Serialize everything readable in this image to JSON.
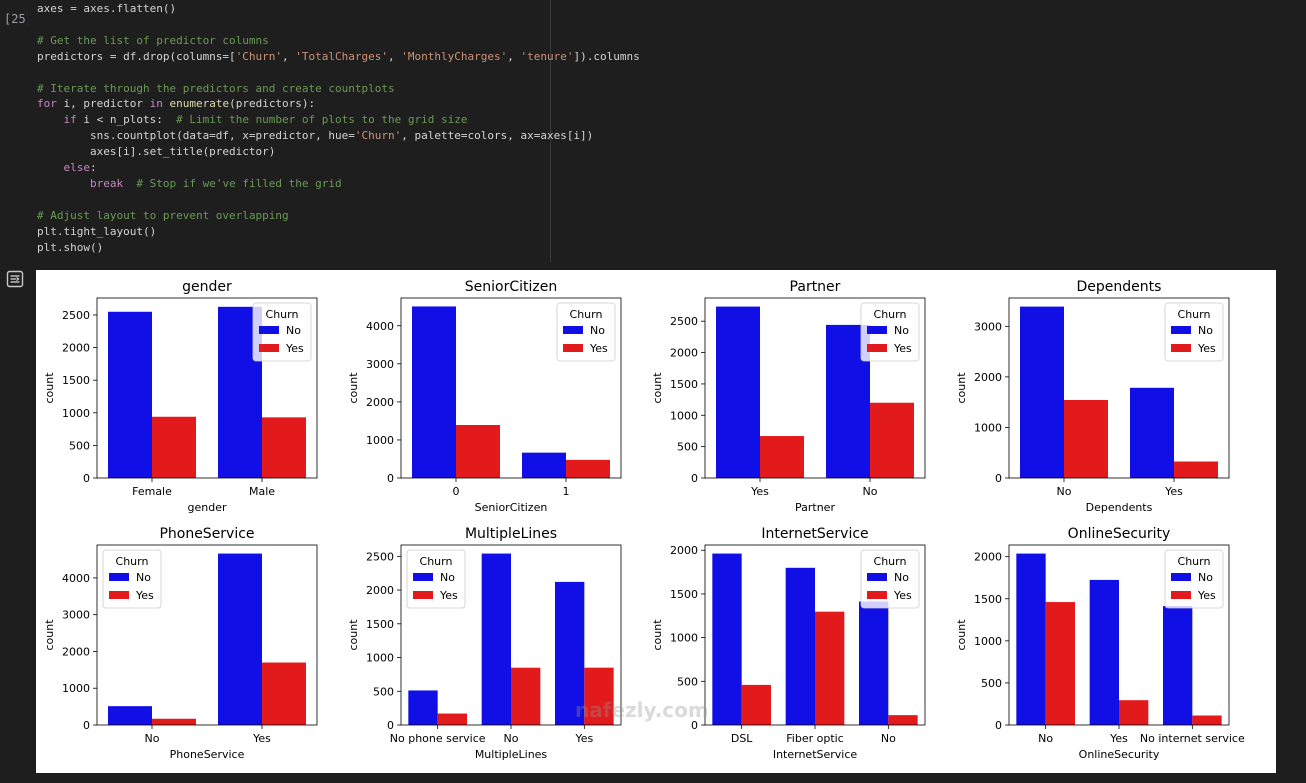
{
  "cell": {
    "exec_count": "[25]",
    "lines": [
      [
        {
          "t": "axes = axes.flatten()",
          "c": ""
        }
      ],
      [],
      [
        {
          "t": "# Get the list of predictor columns",
          "c": "cmt"
        }
      ],
      [
        {
          "t": "predictors = df.drop(columns=[",
          "c": ""
        },
        {
          "t": "'Churn'",
          "c": "str"
        },
        {
          "t": ", ",
          "c": ""
        },
        {
          "t": "'TotalCharges'",
          "c": "str"
        },
        {
          "t": ", ",
          "c": ""
        },
        {
          "t": "'MonthlyCharges'",
          "c": "str"
        },
        {
          "t": ", ",
          "c": ""
        },
        {
          "t": "'tenure'",
          "c": "str"
        },
        {
          "t": "]).columns",
          "c": ""
        }
      ],
      [],
      [
        {
          "t": "# Iterate through the predictors and create countplots",
          "c": "cmt"
        }
      ],
      [
        {
          "t": "for",
          "c": "kw"
        },
        {
          "t": " i, predictor ",
          "c": ""
        },
        {
          "t": "in",
          "c": "kw"
        },
        {
          "t": " ",
          "c": ""
        },
        {
          "t": "enumerate",
          "c": "fn"
        },
        {
          "t": "(predictors):",
          "c": ""
        }
      ],
      [
        {
          "t": "    ",
          "c": ""
        },
        {
          "t": "if",
          "c": "kw"
        },
        {
          "t": " i < n_plots:  ",
          "c": ""
        },
        {
          "t": "# Limit the number of plots to the grid size",
          "c": "cmt"
        }
      ],
      [
        {
          "t": "        sns.countplot(data=df, x=predictor, hue=",
          "c": ""
        },
        {
          "t": "'Churn'",
          "c": "str"
        },
        {
          "t": ", palette=colors, ax=axes[i])",
          "c": ""
        }
      ],
      [
        {
          "t": "        axes[i].set_title(predictor)",
          "c": ""
        }
      ],
      [
        {
          "t": "    ",
          "c": ""
        },
        {
          "t": "else",
          "c": "kw"
        },
        {
          "t": ":",
          "c": ""
        }
      ],
      [
        {
          "t": "        ",
          "c": ""
        },
        {
          "t": "break",
          "c": "kw"
        },
        {
          "t": "  ",
          "c": ""
        },
        {
          "t": "# Stop if we've filled the grid",
          "c": "cmt"
        }
      ],
      [],
      [
        {
          "t": "# Adjust layout to prevent overlapping",
          "c": "cmt"
        }
      ],
      [
        {
          "t": "plt.tight_layout()",
          "c": ""
        }
      ],
      [
        {
          "t": "plt.show()",
          "c": ""
        }
      ]
    ]
  },
  "output_icon": "output-toggle-icon",
  "watermark": "nafezly.com",
  "colors": {
    "no": "#0f0fe6",
    "yes": "#e31a1c"
  },
  "chart_data": [
    {
      "type": "bar",
      "title": "gender",
      "xlabel": "gender",
      "ylabel": "count",
      "categories": [
        "Female",
        "Male"
      ],
      "series": [
        {
          "name": "No",
          "values": [
            2549,
            2625
          ]
        },
        {
          "name": "Yes",
          "values": [
            939,
            930
          ]
        }
      ],
      "yticks": [
        0,
        500,
        1000,
        1500,
        2000,
        2500
      ],
      "ylim": [
        0,
        2760
      ],
      "legend": {
        "title": "Churn",
        "position": "upper right"
      }
    },
    {
      "type": "bar",
      "title": "SeniorCitizen",
      "xlabel": "SeniorCitizen",
      "ylabel": "count",
      "categories": [
        "0",
        "1"
      ],
      "series": [
        {
          "name": "No",
          "values": [
            4508,
            666
          ]
        },
        {
          "name": "Yes",
          "values": [
            1393,
            476
          ]
        }
      ],
      "yticks": [
        0,
        1000,
        2000,
        3000,
        4000
      ],
      "ylim": [
        0,
        4730
      ],
      "legend": {
        "title": "Churn",
        "position": "upper right"
      }
    },
    {
      "type": "bar",
      "title": "Partner",
      "xlabel": "Partner",
      "ylabel": "count",
      "categories": [
        "Yes",
        "No"
      ],
      "series": [
        {
          "name": "No",
          "values": [
            2733,
            2441
          ]
        },
        {
          "name": "Yes",
          "values": [
            669,
            1200
          ]
        }
      ],
      "yticks": [
        0,
        500,
        1000,
        1500,
        2000,
        2500
      ],
      "ylim": [
        0,
        2870
      ],
      "legend": {
        "title": "Churn",
        "position": "upper right"
      }
    },
    {
      "type": "bar",
      "title": "Dependents",
      "xlabel": "Dependents",
      "ylabel": "count",
      "categories": [
        "No",
        "Yes"
      ],
      "series": [
        {
          "name": "No",
          "values": [
            3390,
            1784
          ]
        },
        {
          "name": "Yes",
          "values": [
            1543,
            326
          ]
        }
      ],
      "yticks": [
        0,
        1000,
        2000,
        3000
      ],
      "ylim": [
        0,
        3560
      ],
      "legend": {
        "title": "Churn",
        "position": "upper right"
      }
    },
    {
      "type": "bar",
      "title": "PhoneService",
      "xlabel": "PhoneService",
      "ylabel": "count",
      "categories": [
        "No",
        "Yes"
      ],
      "series": [
        {
          "name": "No",
          "values": [
            512,
            4662
          ]
        },
        {
          "name": "Yes",
          "values": [
            170,
            1699
          ]
        }
      ],
      "yticks": [
        0,
        1000,
        2000,
        3000,
        4000
      ],
      "ylim": [
        0,
        4895
      ],
      "legend": {
        "title": "Churn",
        "position": "upper left"
      }
    },
    {
      "type": "bar",
      "title": "MultipleLines",
      "xlabel": "MultipleLines",
      "ylabel": "count",
      "categories": [
        "No phone service",
        "No",
        "Yes"
      ],
      "series": [
        {
          "name": "No",
          "values": [
            512,
            2541,
            2121
          ]
        },
        {
          "name": "Yes",
          "values": [
            170,
            849,
            850
          ]
        }
      ],
      "yticks": [
        0,
        500,
        1000,
        1500,
        2000,
        2500
      ],
      "ylim": [
        0,
        2668
      ],
      "legend": {
        "title": "Churn",
        "position": "upper left"
      }
    },
    {
      "type": "bar",
      "title": "InternetService",
      "xlabel": "InternetService",
      "ylabel": "count",
      "categories": [
        "DSL",
        "Fiber optic",
        "No"
      ],
      "series": [
        {
          "name": "No",
          "values": [
            1962,
            1799,
            1413
          ]
        },
        {
          "name": "Yes",
          "values": [
            459,
            1297,
            113
          ]
        }
      ],
      "yticks": [
        0,
        500,
        1000,
        1500,
        2000
      ],
      "ylim": [
        0,
        2060
      ],
      "legend": {
        "title": "Churn",
        "position": "upper right"
      }
    },
    {
      "type": "bar",
      "title": "OnlineSecurity",
      "xlabel": "OnlineSecurity",
      "ylabel": "count",
      "categories": [
        "No",
        "Yes",
        "No internet service"
      ],
      "series": [
        {
          "name": "No",
          "values": [
            2037,
            1724,
            1413
          ]
        },
        {
          "name": "Yes",
          "values": [
            1461,
            295,
            113
          ]
        }
      ],
      "yticks": [
        0,
        500,
        1000,
        1500,
        2000
      ],
      "ylim": [
        0,
        2139
      ],
      "legend": {
        "title": "Churn",
        "position": "upper right"
      }
    }
  ]
}
